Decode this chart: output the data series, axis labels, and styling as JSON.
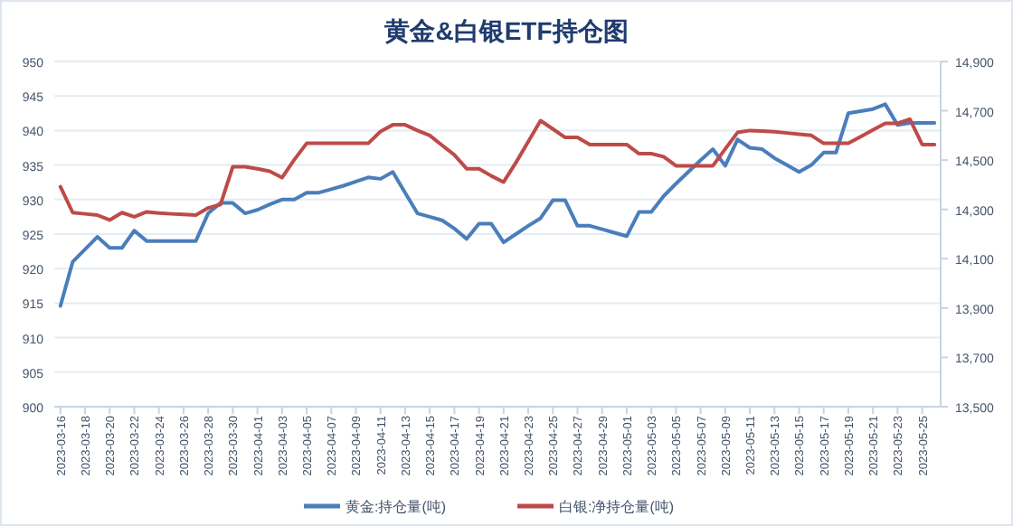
{
  "chart_data": {
    "type": "line",
    "title": "黄金&白银ETF持仓图",
    "categories": [
      "2023-03-16",
      null,
      "2023-03-18",
      null,
      "2023-03-20",
      null,
      "2023-03-22",
      null,
      "2023-03-24",
      null,
      "2023-03-26",
      null,
      "2023-03-28",
      null,
      "2023-03-30",
      null,
      "2023-04-01",
      null,
      "2023-04-03",
      null,
      "2023-04-05",
      null,
      "2023-04-07",
      null,
      "2023-04-09",
      null,
      "2023-04-11",
      null,
      "2023-04-13",
      null,
      "2023-04-15",
      null,
      "2023-04-17",
      null,
      "2023-04-19",
      null,
      "2023-04-21",
      null,
      "2023-04-23",
      null,
      "2023-04-25",
      null,
      "2023-04-27",
      null,
      "2023-04-29",
      null,
      "2023-05-01",
      null,
      "2023-05-03",
      null,
      "2023-05-05",
      null,
      "2023-05-07",
      null,
      "2023-05-09",
      null,
      "2023-05-11",
      null,
      "2023-05-13",
      null,
      "2023-05-15",
      null,
      "2023-05-17",
      null,
      "2023-05-19",
      null,
      "2023-05-21",
      null,
      "2023-05-23",
      null,
      "2023-05-25",
      null
    ],
    "series": [
      {
        "name": "黄金:持仓量(吨)",
        "color": "#4a7ebb",
        "values": [
          914.6,
          921,
          922.8,
          924.6,
          923,
          923,
          925.5,
          924,
          924,
          924,
          924,
          924,
          928,
          929.5,
          929.5,
          928,
          928.5,
          929.3,
          930,
          930,
          931,
          931,
          931.5,
          932,
          932.6,
          933.2,
          933,
          934,
          931,
          928,
          927.5,
          927,
          925.8,
          924.3,
          926.5,
          926.5,
          923.8,
          925,
          926.2,
          927.3,
          929.9,
          929.9,
          926.2,
          926.2,
          925.7,
          925.2,
          924.7,
          928.2,
          928.2,
          930.5,
          932.3,
          934,
          935.7,
          937.3,
          934.9,
          938.7,
          937.5,
          937.3,
          936,
          935,
          934,
          935,
          936.8,
          936.8,
          942.5,
          942.8,
          943.1,
          943.8,
          940.8,
          941.1,
          941.1,
          941.1
        ]
      },
      {
        "name": "白银:净持仓量(吨)",
        "color": "#be4b48",
        "axis": "y2",
        "values": [
          14392,
          14287,
          14282,
          14277,
          14257,
          14287,
          14270,
          14290,
          14285,
          14282,
          14280,
          14277,
          14306,
          14320,
          14473,
          14473,
          14465,
          14455,
          14429,
          14502,
          14568,
          14568,
          14568,
          14568,
          14568,
          14568,
          14616,
          14643,
          14643,
          14620,
          14600,
          14560,
          14521,
          14465,
          14465,
          14436,
          14411,
          14490,
          14575,
          14660,
          14626,
          14592,
          14592,
          14563,
          14563,
          14563,
          14563,
          14526,
          14526,
          14514,
          14477,
          14477,
          14477,
          14477,
          14545,
          14612,
          14620,
          14618,
          14615,
          14610,
          14605,
          14600,
          14568,
          14568,
          14568,
          14595,
          14622,
          14649,
          14649,
          14666,
          14563,
          14563
        ]
      }
    ],
    "ylim": [
      900,
      950
    ],
    "yticks": [
      900,
      905,
      910,
      915,
      920,
      925,
      930,
      935,
      940,
      945,
      950
    ],
    "y2lim": [
      13500,
      14900
    ],
    "y2ticks": [
      {
        "value": 13500,
        "label": "13,500"
      },
      {
        "value": 13700,
        "label": "13,700"
      },
      {
        "value": 13900,
        "label": "13,900"
      },
      {
        "value": 14100,
        "label": "14,100"
      },
      {
        "value": 14300,
        "label": "14,300"
      },
      {
        "value": 14500,
        "label": "14,500"
      },
      {
        "value": 14700,
        "label": "14,700"
      },
      {
        "value": 14900,
        "label": "14,900"
      }
    ],
    "grid": "y",
    "legend": "bottom"
  }
}
